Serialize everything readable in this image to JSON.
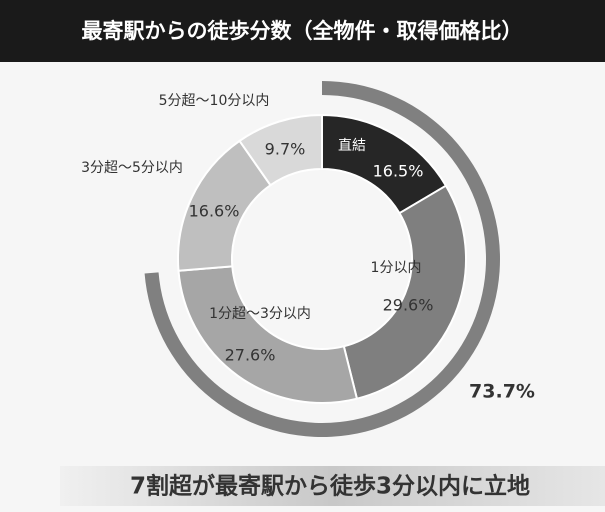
{
  "chart_data": {
    "type": "donut",
    "title": "最寄駅からの徒歩分数（全物件・取得価格比）",
    "categories": [
      "直結",
      "1分以内",
      "1分超～3分以内",
      "3分超～5分以内",
      "5分超～10分以内"
    ],
    "values": [
      16.5,
      29.6,
      27.6,
      16.6,
      9.7
    ],
    "value_labels": [
      "16.5%",
      "29.6%",
      "27.6%",
      "16.6%",
      "9.7%"
    ],
    "colors": [
      "#262626",
      "#7f7f7f",
      "#a6a6a6",
      "#bfbfbf",
      "#d9d9d9"
    ],
    "summary": {
      "value": 73.7,
      "label": "73.7%",
      "color": "#808080"
    },
    "footnote": "7割超が最寄駅から徒歩3分以内に立地"
  }
}
